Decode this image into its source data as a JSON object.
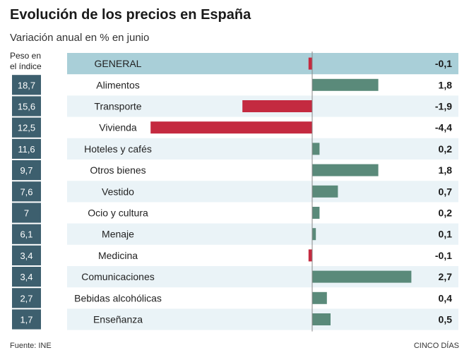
{
  "chart_data": {
    "type": "bar",
    "title": "Evolución de los precios en España",
    "subtitle": "Variación anual en % en junio",
    "weight_header": "Peso en el índice",
    "source": "Fuente: INE",
    "credit": "CINCO DÍAS",
    "xlim": [
      -4.4,
      2.7
    ],
    "rows": [
      {
        "category": "GENERAL",
        "weight": "",
        "value": -0.1,
        "label": "-0,1",
        "highlight": true
      },
      {
        "category": "Alimentos",
        "weight": "18,7",
        "value": 1.8,
        "label": "1,8"
      },
      {
        "category": "Transporte",
        "weight": "15,6",
        "value": -1.9,
        "label": "-1,9"
      },
      {
        "category": "Vivienda",
        "weight": "12,5",
        "value": -4.4,
        "label": "-4,4"
      },
      {
        "category": "Hoteles y cafés",
        "weight": "11,6",
        "value": 0.2,
        "label": "0,2"
      },
      {
        "category": "Otros bienes",
        "weight": "9,7",
        "value": 1.8,
        "label": "1,8"
      },
      {
        "category": "Vestido",
        "weight": "7,6",
        "value": 0.7,
        "label": "0,7"
      },
      {
        "category": "Ocio y cultura",
        "weight": "7",
        "value": 0.2,
        "label": "0,2"
      },
      {
        "category": "Menaje",
        "weight": "6,1",
        "value": 0.1,
        "label": "0,1"
      },
      {
        "category": "Medicina",
        "weight": "3,4",
        "value": -0.1,
        "label": "-0,1"
      },
      {
        "category": "Comunicaciones",
        "weight": "3,4",
        "value": 2.7,
        "label": "2,7"
      },
      {
        "category": "Bebidas alcohólicas",
        "weight": "2,7",
        "value": 0.4,
        "label": "0,4"
      },
      {
        "category": "Enseñanza",
        "weight": "1,7",
        "value": 0.5,
        "label": "0,5"
      }
    ],
    "colors": {
      "positive": "#5a8a7a",
      "negative": "#c42a40",
      "highlight_row": "#a9cfd8",
      "stripe": "#eaf3f7",
      "weight_bg": "#3d5f6e",
      "axis": "#888888"
    }
  }
}
